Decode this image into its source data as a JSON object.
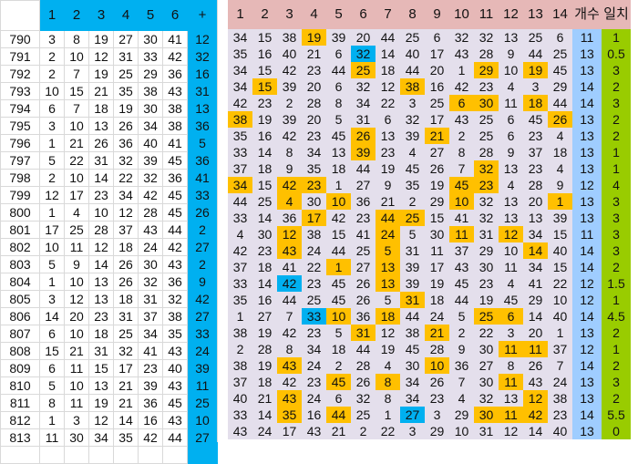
{
  "left_table": {
    "headers": [
      "1",
      "2",
      "3",
      "4",
      "5",
      "6",
      "+"
    ],
    "rows": [
      {
        "id": "790",
        "nums": [
          3,
          8,
          19,
          27,
          30,
          41
        ],
        "bonus": 12
      },
      {
        "id": "791",
        "nums": [
          2,
          10,
          12,
          31,
          33,
          42
        ],
        "bonus": 32
      },
      {
        "id": "792",
        "nums": [
          2,
          7,
          19,
          25,
          29,
          36
        ],
        "bonus": 16
      },
      {
        "id": "793",
        "nums": [
          10,
          15,
          21,
          35,
          38,
          43
        ],
        "bonus": 31
      },
      {
        "id": "794",
        "nums": [
          6,
          7,
          18,
          19,
          30,
          38
        ],
        "bonus": 13
      },
      {
        "id": "795",
        "nums": [
          3,
          10,
          13,
          26,
          34,
          38
        ],
        "bonus": 36
      },
      {
        "id": "796",
        "nums": [
          1,
          21,
          26,
          36,
          40,
          41
        ],
        "bonus": 5
      },
      {
        "id": "797",
        "nums": [
          5,
          22,
          31,
          32,
          39,
          45
        ],
        "bonus": 36
      },
      {
        "id": "798",
        "nums": [
          2,
          10,
          14,
          22,
          32,
          36
        ],
        "bonus": 41
      },
      {
        "id": "799",
        "nums": [
          12,
          17,
          23,
          34,
          42,
          45
        ],
        "bonus": 33
      },
      {
        "id": "800",
        "nums": [
          1,
          4,
          10,
          12,
          28,
          45
        ],
        "bonus": 26
      },
      {
        "id": "801",
        "nums": [
          17,
          25,
          28,
          37,
          43,
          44
        ],
        "bonus": 2
      },
      {
        "id": "802",
        "nums": [
          10,
          11,
          12,
          18,
          24,
          42
        ],
        "bonus": 27
      },
      {
        "id": "803",
        "nums": [
          5,
          9,
          14,
          26,
          30,
          43
        ],
        "bonus": 2
      },
      {
        "id": "804",
        "nums": [
          1,
          10,
          13,
          26,
          32,
          36
        ],
        "bonus": 9
      },
      {
        "id": "805",
        "nums": [
          3,
          12,
          13,
          18,
          31,
          32
        ],
        "bonus": 42
      },
      {
        "id": "806",
        "nums": [
          14,
          20,
          23,
          31,
          37,
          38
        ],
        "bonus": 27
      },
      {
        "id": "807",
        "nums": [
          6,
          10,
          18,
          25,
          34,
          35
        ],
        "bonus": 33
      },
      {
        "id": "808",
        "nums": [
          15,
          21,
          31,
          32,
          41,
          43
        ],
        "bonus": 24
      },
      {
        "id": "809",
        "nums": [
          6,
          11,
          15,
          17,
          23,
          40
        ],
        "bonus": 39
      },
      {
        "id": "810",
        "nums": [
          5,
          10,
          13,
          21,
          39,
          43
        ],
        "bonus": 11
      },
      {
        "id": "811",
        "nums": [
          8,
          11,
          19,
          21,
          36,
          45
        ],
        "bonus": 25
      },
      {
        "id": "812",
        "nums": [
          1,
          3,
          12,
          14,
          16,
          43
        ],
        "bonus": 10
      },
      {
        "id": "813",
        "nums": [
          11,
          30,
          34,
          35,
          42,
          44
        ],
        "bonus": 27
      }
    ]
  },
  "right_table": {
    "headers": [
      "1",
      "2",
      "3",
      "4",
      "5",
      "6",
      "7",
      "8",
      "9",
      "10",
      "11",
      "12",
      "13",
      "14",
      "개수",
      "일치"
    ],
    "rows": [
      {
        "vals": [
          34,
          15,
          38,
          19,
          39,
          20,
          44,
          25,
          6,
          32,
          32,
          13,
          25,
          6
        ],
        "count": "11",
        "match": "1",
        "hl": [
          3
        ],
        "blue": []
      },
      {
        "vals": [
          35,
          16,
          40,
          21,
          6,
          32,
          14,
          40,
          17,
          43,
          28,
          9,
          44,
          25
        ],
        "count": "13",
        "match": "0.5",
        "hl": [],
        "blue": [
          5
        ]
      },
      {
        "vals": [
          34,
          15,
          42,
          23,
          44,
          25,
          18,
          44,
          20,
          1,
          29,
          10,
          19,
          45
        ],
        "count": "13",
        "match": "3",
        "hl": [
          5,
          10,
          12
        ],
        "blue": []
      },
      {
        "vals": [
          34,
          15,
          39,
          20,
          6,
          32,
          12,
          38,
          16,
          42,
          23,
          4,
          3,
          29
        ],
        "count": "14",
        "match": "2",
        "hl": [
          1,
          7
        ],
        "blue": []
      },
      {
        "vals": [
          42,
          23,
          2,
          28,
          8,
          34,
          22,
          3,
          25,
          6,
          30,
          11,
          18,
          44
        ],
        "count": "14",
        "match": "3",
        "hl": [
          9,
          10,
          12
        ],
        "blue": []
      },
      {
        "vals": [
          38,
          19,
          39,
          20,
          5,
          31,
          6,
          32,
          17,
          43,
          25,
          6,
          45,
          26
        ],
        "count": "13",
        "match": "2",
        "hl": [
          0,
          13
        ],
        "blue": []
      },
      {
        "vals": [
          35,
          16,
          42,
          23,
          45,
          26,
          13,
          39,
          21,
          2,
          25,
          6,
          23,
          4
        ],
        "count": "13",
        "match": "2",
        "hl": [
          5,
          8
        ],
        "blue": []
      },
      {
        "vals": [
          33,
          14,
          8,
          34,
          13,
          39,
          23,
          4,
          27,
          8,
          28,
          9,
          37,
          18
        ],
        "count": "13",
        "match": "1",
        "hl": [
          5
        ],
        "blue": []
      },
      {
        "vals": [
          37,
          18,
          9,
          35,
          18,
          44,
          19,
          45,
          26,
          7,
          32,
          13,
          23,
          4
        ],
        "count": "13",
        "match": "1",
        "hl": [
          10
        ],
        "blue": []
      },
      {
        "vals": [
          34,
          15,
          42,
          23,
          1,
          27,
          9,
          35,
          19,
          45,
          23,
          4,
          28,
          9
        ],
        "count": "12",
        "match": "4",
        "hl": [
          0,
          2,
          3,
          9,
          10
        ],
        "blue": []
      },
      {
        "vals": [
          44,
          25,
          4,
          30,
          10,
          36,
          21,
          2,
          29,
          10,
          32,
          13,
          20,
          1
        ],
        "count": "13",
        "match": "3",
        "hl": [
          2,
          4,
          9,
          13
        ],
        "blue": []
      },
      {
        "vals": [
          33,
          14,
          36,
          17,
          42,
          23,
          44,
          25,
          15,
          41,
          32,
          13,
          13,
          39
        ],
        "count": "13",
        "match": "3",
        "hl": [
          3,
          6,
          7
        ],
        "blue": []
      },
      {
        "vals": [
          4,
          30,
          12,
          38,
          15,
          41,
          24,
          5,
          30,
          11,
          31,
          12,
          34,
          15
        ],
        "count": "11",
        "match": "3",
        "hl": [
          2,
          6,
          9,
          11
        ],
        "blue": []
      },
      {
        "vals": [
          42,
          23,
          43,
          24,
          44,
          25,
          5,
          31,
          11,
          37,
          29,
          10,
          14,
          40
        ],
        "count": "14",
        "match": "3",
        "hl": [
          2,
          6,
          12
        ],
        "blue": []
      },
      {
        "vals": [
          37,
          18,
          41,
          22,
          1,
          27,
          13,
          39,
          17,
          43,
          30,
          11,
          34,
          15
        ],
        "count": "14",
        "match": "2",
        "hl": [
          4,
          6
        ],
        "blue": []
      },
      {
        "vals": [
          33,
          14,
          42,
          23,
          45,
          26,
          13,
          39,
          19,
          45,
          23,
          4,
          41,
          22
        ],
        "count": "12",
        "match": "1.5",
        "hl": [
          6
        ],
        "blue": [
          2
        ]
      },
      {
        "vals": [
          35,
          16,
          44,
          25,
          45,
          26,
          5,
          31,
          18,
          44,
          19,
          45,
          29,
          10
        ],
        "count": "12",
        "match": "1",
        "hl": [
          7
        ],
        "blue": []
      },
      {
        "vals": [
          1,
          27,
          7,
          33,
          10,
          36,
          18,
          44,
          24,
          5,
          25,
          6,
          14,
          40
        ],
        "count": "14",
        "match": "4.5",
        "hl": [
          4,
          6,
          10,
          11
        ],
        "blue": [
          3
        ]
      },
      {
        "vals": [
          38,
          19,
          42,
          23,
          5,
          31,
          12,
          38,
          21,
          2,
          22,
          3,
          20,
          1
        ],
        "count": "13",
        "match": "2",
        "hl": [
          5,
          8
        ],
        "blue": []
      },
      {
        "vals": [
          2,
          28,
          8,
          34,
          18,
          44,
          19,
          45,
          28,
          9,
          30,
          11,
          11,
          37
        ],
        "count": "12",
        "match": "1",
        "hl": [
          11,
          12
        ],
        "blue": []
      },
      {
        "vals": [
          38,
          19,
          43,
          24,
          2,
          28,
          4,
          30,
          10,
          36,
          27,
          8,
          26,
          7
        ],
        "count": "14",
        "match": "2",
        "hl": [
          2,
          8
        ],
        "blue": []
      },
      {
        "vals": [
          37,
          18,
          42,
          23,
          45,
          26,
          8,
          34,
          26,
          7,
          30,
          11,
          43,
          24
        ],
        "count": "13",
        "match": "3",
        "hl": [
          4,
          6,
          11
        ],
        "blue": []
      },
      {
        "vals": [
          40,
          21,
          43,
          24,
          6,
          32,
          8,
          34,
          23,
          4,
          32,
          13,
          12,
          38
        ],
        "count": "13",
        "match": "2",
        "hl": [
          2,
          12
        ],
        "blue": []
      },
      {
        "vals": [
          33,
          14,
          35,
          16,
          44,
          25,
          1,
          27,
          3,
          29,
          30,
          11,
          42,
          23
        ],
        "count": "14",
        "match": "5.5",
        "hl": [
          2,
          4,
          10,
          11,
          12
        ],
        "blue": [
          7
        ]
      },
      {
        "vals": [
          43,
          24,
          17,
          43,
          21,
          2,
          22,
          3,
          29,
          10,
          31,
          12,
          14,
          40
        ],
        "count": "13",
        "match": "0",
        "hl": [],
        "blue": []
      }
    ]
  },
  "colors": {
    "header_blue": "#00b0f0",
    "header_pink": "#e6b8b7",
    "body_lavender": "#e4dfec",
    "highlight_orange": "#ffc000",
    "count_blue": "#9fcdff",
    "match_green": "#99cc00"
  }
}
